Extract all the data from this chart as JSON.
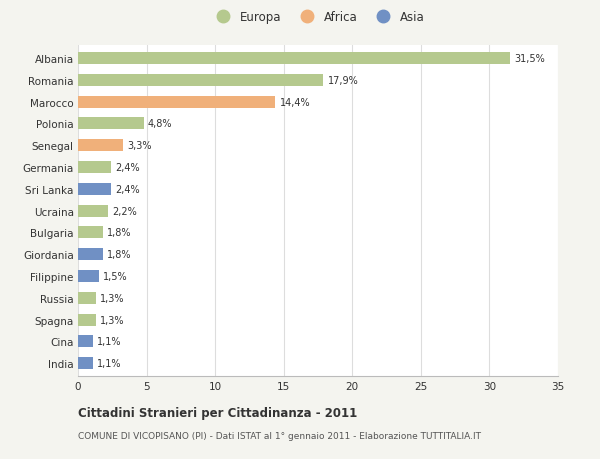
{
  "categories": [
    "Albania",
    "Romania",
    "Marocco",
    "Polonia",
    "Senegal",
    "Germania",
    "Sri Lanka",
    "Ucraina",
    "Bulgaria",
    "Giordania",
    "Filippine",
    "Russia",
    "Spagna",
    "Cina",
    "India"
  ],
  "values": [
    31.5,
    17.9,
    14.4,
    4.8,
    3.3,
    2.4,
    2.4,
    2.2,
    1.8,
    1.8,
    1.5,
    1.3,
    1.3,
    1.1,
    1.1
  ],
  "labels": [
    "31,5%",
    "17,9%",
    "14,4%",
    "4,8%",
    "3,3%",
    "2,4%",
    "2,4%",
    "2,2%",
    "1,8%",
    "1,8%",
    "1,5%",
    "1,3%",
    "1,3%",
    "1,1%",
    "1,1%"
  ],
  "continents": [
    "Europa",
    "Europa",
    "Africa",
    "Europa",
    "Africa",
    "Europa",
    "Asia",
    "Europa",
    "Europa",
    "Asia",
    "Asia",
    "Europa",
    "Europa",
    "Asia",
    "Asia"
  ],
  "colors": {
    "Europa": "#b5c98e",
    "Africa": "#f0b07a",
    "Asia": "#7090c4"
  },
  "xlim": [
    0,
    35
  ],
  "xticks": [
    0,
    5,
    10,
    15,
    20,
    25,
    30,
    35
  ],
  "title": "Cittadini Stranieri per Cittadinanza - 2011",
  "subtitle": "COMUNE DI VICOPISANO (PI) - Dati ISTAT al 1° gennaio 2011 - Elaborazione TUTTITALIA.IT",
  "background_color": "#f4f4ef",
  "plot_bg_color": "#ffffff",
  "grid_color": "#dddddd",
  "text_color": "#333333",
  "subtitle_color": "#555555"
}
